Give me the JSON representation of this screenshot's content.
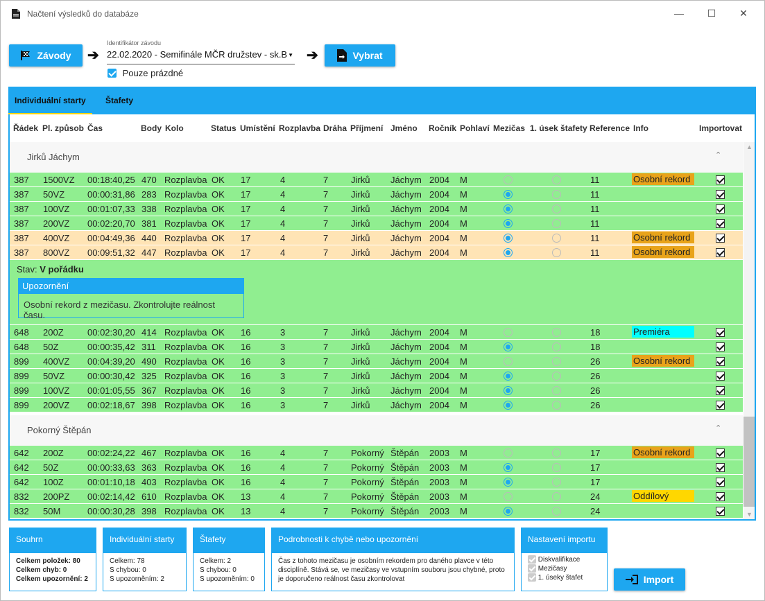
{
  "window": {
    "title": "Načtení výsledků do databáze",
    "min_icon": "minimize-icon",
    "max_icon": "maximize-icon",
    "close_icon": "close-icon"
  },
  "toolbar": {
    "zavody_label": "Závody",
    "race_id_label": "Identifikátor závodu",
    "race_value": "22.02.2020 - Semifinále MČR družstev - sk.B",
    "only_empty_label": "Pouze prázdné",
    "vybrat_label": "Vybrat"
  },
  "tabs": [
    {
      "label": "Individuální starty"
    },
    {
      "label": "Štafety"
    }
  ],
  "columns": [
    "Řádek",
    "Pl. způsob",
    "Čas",
    "Body",
    "Kolo",
    "Status",
    "Umístění",
    "Rozplavba",
    "Dráha",
    "Příjmení",
    "Jméno",
    "Ročník",
    "Pohlaví",
    "Mezičas",
    "1. úsek štafety",
    "Reference",
    "Info",
    "Importovat"
  ],
  "groups": [
    {
      "name": "Jirků Jáchym",
      "chevron": "^",
      "rows": [
        {
          "radek": "387",
          "zpusob": "1500VZ",
          "cas": "00:18:40,25",
          "body": "470",
          "kolo": "Rozplavba",
          "status": "OK",
          "umisteni": "17",
          "rozplavba": "4",
          "draha": "7",
          "prijmeni": "Jirků",
          "jmeno": "Jáchym",
          "rocnik": "2004",
          "pohlavi": "M",
          "mezicas": false,
          "usek": false,
          "reference": "11",
          "info": "Osobní rekord",
          "info_color": "#e8a31a",
          "warn": false
        },
        {
          "radek": "387",
          "zpusob": "50VZ",
          "cas": "00:00:31,86",
          "body": "283",
          "kolo": "Rozplavba",
          "status": "OK",
          "umisteni": "17",
          "rozplavba": "4",
          "draha": "7",
          "prijmeni": "Jirků",
          "jmeno": "Jáchym",
          "rocnik": "2004",
          "pohlavi": "M",
          "mezicas": true,
          "usek": false,
          "reference": "11",
          "info": "",
          "info_color": "",
          "warn": false
        },
        {
          "radek": "387",
          "zpusob": "100VZ",
          "cas": "00:01:07,33",
          "body": "338",
          "kolo": "Rozplavba",
          "status": "OK",
          "umisteni": "17",
          "rozplavba": "4",
          "draha": "7",
          "prijmeni": "Jirků",
          "jmeno": "Jáchym",
          "rocnik": "2004",
          "pohlavi": "M",
          "mezicas": true,
          "usek": false,
          "reference": "11",
          "info": "",
          "info_color": "",
          "warn": false
        },
        {
          "radek": "387",
          "zpusob": "200VZ",
          "cas": "00:02:20,70",
          "body": "381",
          "kolo": "Rozplavba",
          "status": "OK",
          "umisteni": "17",
          "rozplavba": "4",
          "draha": "7",
          "prijmeni": "Jirků",
          "jmeno": "Jáchym",
          "rocnik": "2004",
          "pohlavi": "M",
          "mezicas": true,
          "usek": false,
          "reference": "11",
          "info": "",
          "info_color": "",
          "warn": false
        },
        {
          "radek": "387",
          "zpusob": "400VZ",
          "cas": "00:04:49,36",
          "body": "440",
          "kolo": "Rozplavba",
          "status": "OK",
          "umisteni": "17",
          "rozplavba": "4",
          "draha": "7",
          "prijmeni": "Jirků",
          "jmeno": "Jáchym",
          "rocnik": "2004",
          "pohlavi": "M",
          "mezicas": true,
          "usek": false,
          "reference": "11",
          "info": "Osobní rekord",
          "info_color": "#e8a31a",
          "warn": true
        },
        {
          "radek": "387",
          "zpusob": "800VZ",
          "cas": "00:09:51,32",
          "body": "447",
          "kolo": "Rozplavba",
          "status": "OK",
          "umisteni": "17",
          "rozplavba": "4",
          "draha": "7",
          "prijmeni": "Jirků",
          "jmeno": "Jáchym",
          "rocnik": "2004",
          "pohlavi": "M",
          "mezicas": true,
          "usek": false,
          "reference": "11",
          "info": "Osobní rekord",
          "info_color": "#e8a31a",
          "warn": true
        }
      ],
      "rows2": [
        {
          "radek": "648",
          "zpusob": "200Z",
          "cas": "00:02:30,20",
          "body": "414",
          "kolo": "Rozplavba",
          "status": "OK",
          "umisteni": "16",
          "rozplavba": "3",
          "draha": "7",
          "prijmeni": "Jirků",
          "jmeno": "Jáchym",
          "rocnik": "2004",
          "pohlavi": "M",
          "mezicas": false,
          "usek": false,
          "reference": "18",
          "info": "Premiéra",
          "info_color": "#00ffff",
          "warn": false
        },
        {
          "radek": "648",
          "zpusob": "50Z",
          "cas": "00:00:35,42",
          "body": "311",
          "kolo": "Rozplavba",
          "status": "OK",
          "umisteni": "16",
          "rozplavba": "3",
          "draha": "7",
          "prijmeni": "Jirků",
          "jmeno": "Jáchym",
          "rocnik": "2004",
          "pohlavi": "M",
          "mezicas": true,
          "usek": false,
          "reference": "18",
          "info": "",
          "info_color": "",
          "warn": false
        },
        {
          "radek": "899",
          "zpusob": "400VZ",
          "cas": "00:04:39,20",
          "body": "490",
          "kolo": "Rozplavba",
          "status": "OK",
          "umisteni": "16",
          "rozplavba": "3",
          "draha": "7",
          "prijmeni": "Jirků",
          "jmeno": "Jáchym",
          "rocnik": "2004",
          "pohlavi": "M",
          "mezicas": false,
          "usek": false,
          "reference": "26",
          "info": "Osobní rekord",
          "info_color": "#e8a31a",
          "warn": false
        },
        {
          "radek": "899",
          "zpusob": "50VZ",
          "cas": "00:00:30,42",
          "body": "325",
          "kolo": "Rozplavba",
          "status": "OK",
          "umisteni": "16",
          "rozplavba": "3",
          "draha": "7",
          "prijmeni": "Jirků",
          "jmeno": "Jáchym",
          "rocnik": "2004",
          "pohlavi": "M",
          "mezicas": true,
          "usek": false,
          "reference": "26",
          "info": "",
          "info_color": "",
          "warn": false
        },
        {
          "radek": "899",
          "zpusob": "100VZ",
          "cas": "00:01:05,55",
          "body": "367",
          "kolo": "Rozplavba",
          "status": "OK",
          "umisteni": "16",
          "rozplavba": "3",
          "draha": "7",
          "prijmeni": "Jirků",
          "jmeno": "Jáchym",
          "rocnik": "2004",
          "pohlavi": "M",
          "mezicas": true,
          "usek": false,
          "reference": "26",
          "info": "",
          "info_color": "",
          "warn": false
        },
        {
          "radek": "899",
          "zpusob": "200VZ",
          "cas": "00:02:18,67",
          "body": "398",
          "kolo": "Rozplavba",
          "status": "OK",
          "umisteni": "16",
          "rozplavba": "3",
          "draha": "7",
          "prijmeni": "Jirků",
          "jmeno": "Jáchym",
          "rocnik": "2004",
          "pohlavi": "M",
          "mezicas": true,
          "usek": false,
          "reference": "26",
          "info": "",
          "info_color": "",
          "warn": false
        }
      ]
    },
    {
      "name": "Pokorný Štěpán",
      "chevron": "^",
      "rows": [
        {
          "radek": "642",
          "zpusob": "200Z",
          "cas": "00:02:24,22",
          "body": "467",
          "kolo": "Rozplavba",
          "status": "OK",
          "umisteni": "16",
          "rozplavba": "4",
          "draha": "7",
          "prijmeni": "Pokorný",
          "jmeno": "Štěpán",
          "rocnik": "2003",
          "pohlavi": "M",
          "mezicas": false,
          "usek": false,
          "reference": "17",
          "info": "Osobní rekord",
          "info_color": "#e8a31a",
          "warn": false
        },
        {
          "radek": "642",
          "zpusob": "50Z",
          "cas": "00:00:33,63",
          "body": "363",
          "kolo": "Rozplavba",
          "status": "OK",
          "umisteni": "16",
          "rozplavba": "4",
          "draha": "7",
          "prijmeni": "Pokorný",
          "jmeno": "Štěpán",
          "rocnik": "2003",
          "pohlavi": "M",
          "mezicas": true,
          "usek": false,
          "reference": "17",
          "info": "",
          "info_color": "",
          "warn": false
        },
        {
          "radek": "642",
          "zpusob": "100Z",
          "cas": "00:01:10,18",
          "body": "403",
          "kolo": "Rozplavba",
          "status": "OK",
          "umisteni": "16",
          "rozplavba": "4",
          "draha": "7",
          "prijmeni": "Pokorný",
          "jmeno": "Štěpán",
          "rocnik": "2003",
          "pohlavi": "M",
          "mezicas": true,
          "usek": false,
          "reference": "17",
          "info": "",
          "info_color": "",
          "warn": false
        },
        {
          "radek": "832",
          "zpusob": "200PZ",
          "cas": "00:02:14,42",
          "body": "610",
          "kolo": "Rozplavba",
          "status": "OK",
          "umisteni": "13",
          "rozplavba": "4",
          "draha": "7",
          "prijmeni": "Pokorný",
          "jmeno": "Štěpán",
          "rocnik": "2003",
          "pohlavi": "M",
          "mezicas": false,
          "usek": false,
          "reference": "24",
          "info": "Oddílový rekord",
          "info_color": "#ffd700",
          "warn": false
        },
        {
          "radek": "832",
          "zpusob": "50M",
          "cas": "00:00:30,28",
          "body": "398",
          "kolo": "Rozplavba",
          "status": "OK",
          "umisteni": "13",
          "rozplavba": "4",
          "draha": "7",
          "prijmeni": "Pokorný",
          "jmeno": "Štěpán",
          "rocnik": "2003",
          "pohlavi": "M",
          "mezicas": true,
          "usek": false,
          "reference": "24",
          "info": "",
          "info_color": "",
          "warn": false
        }
      ]
    }
  ],
  "detail": {
    "stav_label": "Stav:",
    "stav_value": "V pořádku",
    "warn_title": "Upozornění",
    "warn_text": "Osobní rekord z mezičasu. Zkontrolujte reálnost času."
  },
  "summary": {
    "title": "Souhrn",
    "l1": "Celkem položek: 80",
    "l2": "Celkem chyb: 0",
    "l3": "Celkem upozornění: 2"
  },
  "individual": {
    "title": "Individuální starty",
    "l1": "Celkem: 78",
    "l2": "S chybou: 0",
    "l3": "S upozorněním: 2"
  },
  "relays": {
    "title": "Štafety",
    "l1": "Celkem: 2",
    "l2": "S chybou: 0",
    "l3": "S upozorněním: 0"
  },
  "details_panel": {
    "title": "Podrobnosti k chybě nebo upozornění",
    "text": "Čas z tohoto mezičasu je osobním rekordem pro daného plavce v této disciplíně. Stává se, ve mezičasy ve vstupním souboru jsou chybné, proto je doporučeno reálnost času zkontrolovat"
  },
  "import_settings": {
    "title": "Nastavení importu",
    "o1": "Diskvalifikace",
    "o2": "Mezičasy",
    "o3": "1. úseky štafet"
  },
  "import_label": "Import"
}
